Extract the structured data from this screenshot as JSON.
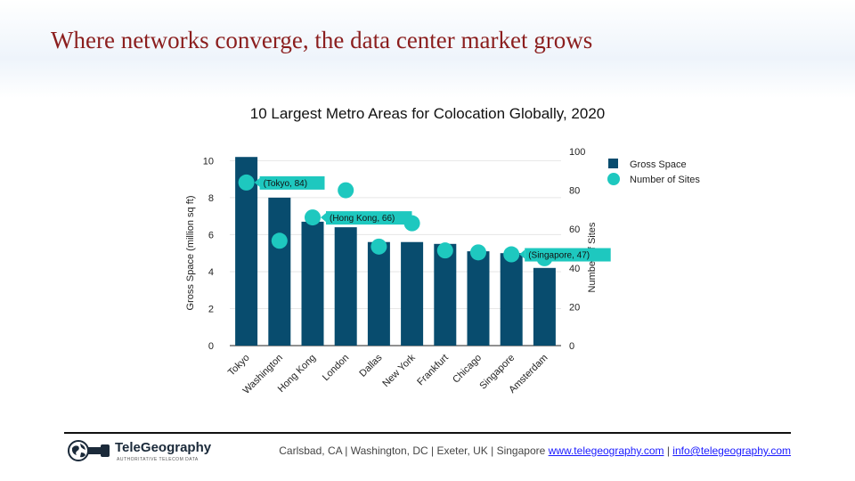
{
  "slide": {
    "title": "Where networks converge, the data center market grows"
  },
  "chart_data": {
    "type": "bar",
    "title": "10 Largest Metro Areas for Colocation Globally, 2020",
    "categories": [
      "Tokyo",
      "Washington",
      "Hong Kong",
      "London",
      "Dallas",
      "New York",
      "Frankfurt",
      "Chicago",
      "Singapore",
      "Amsterdam"
    ],
    "series": [
      {
        "name": "Gross Space",
        "type": "bar",
        "axis": "left",
        "color": "#084c6e",
        "values": [
          10.2,
          8.0,
          6.7,
          6.4,
          5.6,
          5.6,
          5.5,
          5.1,
          5.0,
          4.2
        ]
      },
      {
        "name": "Number of Sites",
        "type": "scatter",
        "axis": "right",
        "color": "#1ec8bf",
        "values": [
          84,
          54,
          66,
          80,
          51,
          63,
          49,
          48,
          47,
          45
        ]
      }
    ],
    "ylabel": "Gross Space (million sq ft)",
    "ylim": [
      0,
      10.5
    ],
    "yticks": [
      0,
      2,
      4,
      6,
      8,
      10
    ],
    "y2label": "Number of Sites",
    "y2lim": [
      0,
      100
    ],
    "y2ticks": [
      0,
      20,
      40,
      60,
      80,
      100
    ],
    "annotations": [
      {
        "index": 0,
        "text": "(Tokyo, 84)"
      },
      {
        "index": 2,
        "text": "(Hong Kong, 66)"
      },
      {
        "index": 8,
        "text": "(Singapore, 47)"
      }
    ],
    "annotation_color": "#1ec8bf",
    "grid": true,
    "legend": "right"
  },
  "footer": {
    "logo_text": "TeleGeography",
    "logo_tagline": "AUTHORITATIVE TELECOM DATA",
    "locations": "Carlsbad, CA | Washington, DC | Exeter,  UK | Singapore",
    "separator": "|",
    "website": "www.telegeography.com",
    "email": "info@telegeography.com"
  }
}
